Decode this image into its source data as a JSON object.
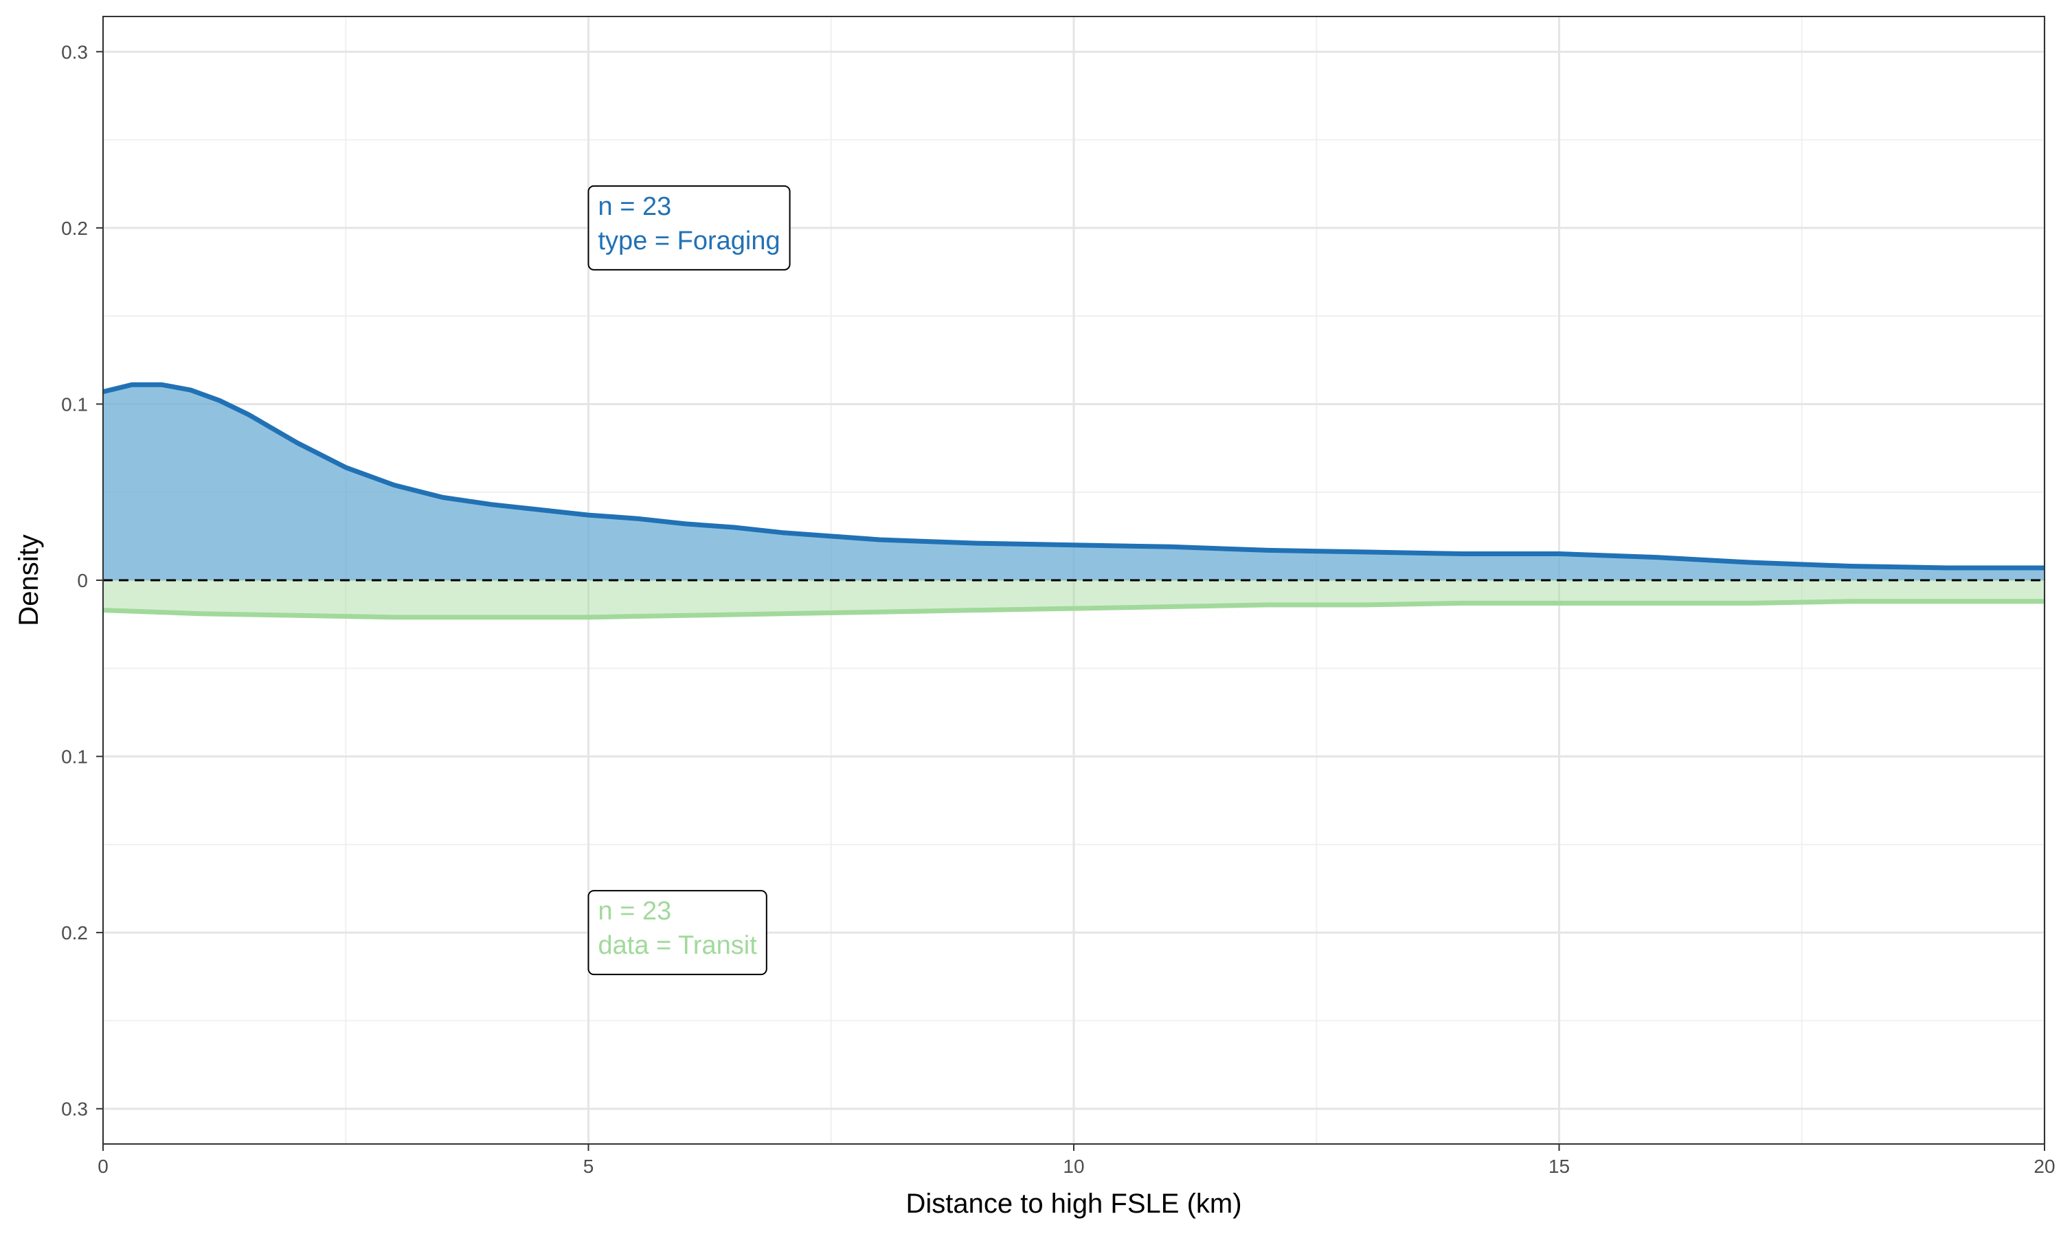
{
  "chart_data": {
    "type": "area",
    "xlabel": "Distance to high FSLE (km)",
    "ylabel": "Density",
    "xlim": [
      0,
      20
    ],
    "ylim": [
      -0.32,
      0.32
    ],
    "x_ticks": [
      {
        "value": 0,
        "label": "0"
      },
      {
        "value": 5,
        "label": "5"
      },
      {
        "value": 10,
        "label": "10"
      },
      {
        "value": 15,
        "label": "15"
      },
      {
        "value": 20,
        "label": "20"
      }
    ],
    "y_ticks": [
      {
        "value": 0.3,
        "label": "0.3"
      },
      {
        "value": 0.2,
        "label": "0.2"
      },
      {
        "value": 0.1,
        "label": "0.1"
      },
      {
        "value": 0,
        "label": "0"
      },
      {
        "value": -0.1,
        "label": "0.1"
      },
      {
        "value": -0.2,
        "label": "0.2"
      },
      {
        "value": -0.3,
        "label": "0.3"
      }
    ],
    "grid": true,
    "zero_line": "dashed",
    "series": [
      {
        "direction": "up",
        "line_color": "#2171b5",
        "fill_color": "#6baed6",
        "x": [
          0,
          0.3,
          0.6,
          0.9,
          1.2,
          1.5,
          2,
          2.5,
          3,
          3.5,
          4,
          4.5,
          5,
          5.5,
          6,
          6.5,
          7,
          7.5,
          8,
          8.5,
          9,
          10,
          11,
          12,
          13,
          14,
          15,
          16,
          17,
          18,
          19,
          20
        ],
        "y": [
          0.107,
          0.111,
          0.111,
          0.108,
          0.102,
          0.094,
          0.078,
          0.064,
          0.054,
          0.047,
          0.043,
          0.04,
          0.037,
          0.035,
          0.032,
          0.03,
          0.027,
          0.025,
          0.023,
          0.022,
          0.021,
          0.02,
          0.019,
          0.017,
          0.016,
          0.015,
          0.015,
          0.013,
          0.01,
          0.008,
          0.007,
          0.007
        ]
      },
      {
        "direction": "down",
        "line_color": "#a1d99b",
        "fill_color": "#a1d99b",
        "x": [
          0,
          1,
          2,
          3,
          4,
          5,
          6,
          7,
          8,
          9,
          10,
          11,
          12,
          13,
          14,
          15,
          16,
          17,
          18,
          19,
          20
        ],
        "y": [
          0.017,
          0.019,
          0.02,
          0.021,
          0.021,
          0.021,
          0.02,
          0.019,
          0.018,
          0.017,
          0.016,
          0.015,
          0.014,
          0.014,
          0.013,
          0.013,
          0.013,
          0.013,
          0.012,
          0.012,
          0.012
        ]
      }
    ],
    "annotations": [
      {
        "lines": [
          "n = 23",
          "type = Foraging"
        ],
        "color": "#2171b5",
        "x": 5,
        "y": 0.2
      },
      {
        "lines": [
          "n = 23",
          "data = Transit"
        ],
        "color": "#a1d99b",
        "x": 5,
        "y": -0.2
      }
    ]
  }
}
